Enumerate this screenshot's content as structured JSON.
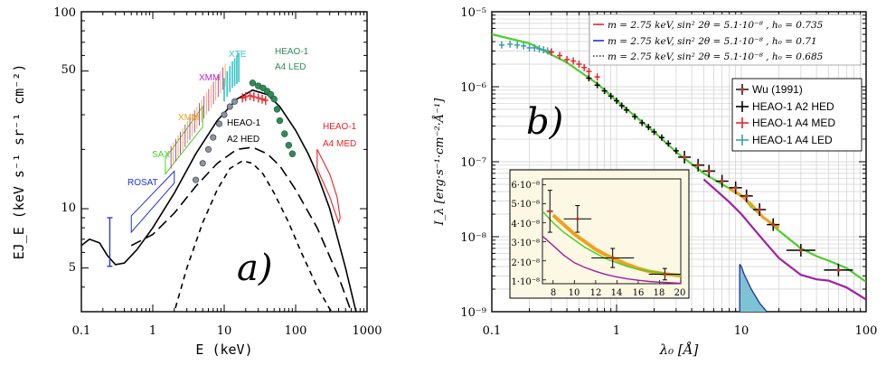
{
  "colors": {
    "red": "#e8242a",
    "blue": "#1f2fd6",
    "navy": "#1f2f9c",
    "green": "#2e8b57",
    "cyan": "#34c4c4",
    "purple": "#a020a0",
    "lime": "#4ccf2a",
    "orange": "#f0a020",
    "olive": "#8fb820",
    "teal": "#3b9ea8",
    "inset_bg": "#fdf8e3",
    "black": "#000000"
  },
  "chart_data": [
    {
      "type": "line",
      "panel_label": "a)",
      "xlabel": "E (keV)",
      "ylabel": "EJ_E  (keV s⁻¹ sr⁻¹ cm⁻²)",
      "xscale": "log",
      "yscale": "log",
      "xlim": [
        0.1,
        1000
      ],
      "ylim": [
        3,
        100
      ],
      "x_ticks": [
        0.1,
        1,
        10,
        100,
        1000
      ],
      "x_tick_labels": [
        "0.1",
        "1",
        "10",
        "100",
        "1000"
      ],
      "y_ticks": [
        5,
        10,
        50,
        100
      ],
      "y_tick_labels": [
        "5",
        "10",
        "50",
        "100"
      ],
      "annotations": {
        "rosat": "ROSAT",
        "sax": "SAX",
        "xmm_lower": "XMM",
        "xmm_upper": "XMM",
        "xte": "XTE",
        "heao1_a4led_line1": "HEAO-1",
        "heao1_a4led_line2": "A4 LED",
        "heao1_a2hed_line1": "HEAO-1",
        "heao1_a2hed_line2": "A2 HED",
        "heao1_a4med_line1": "HEAO-1",
        "heao1_a4med_line2": "A4 MED"
      },
      "series": [
        {
          "name": "total model",
          "style": "solid",
          "x": [
            0.1,
            0.13,
            0.18,
            0.23,
            0.3,
            0.4,
            0.6,
            1,
            2,
            4,
            8,
            15,
            25,
            40,
            60,
            100,
            150,
            200,
            300,
            500,
            700,
            800
          ],
          "y": [
            6.5,
            7.0,
            6.7,
            5.8,
            5.2,
            5.3,
            6.2,
            8.0,
            12.0,
            19.0,
            28.0,
            36.0,
            40.0,
            38.0,
            33.0,
            25.0,
            19.0,
            15.0,
            10.0,
            5.0,
            3.0,
            2.5
          ]
        },
        {
          "name": "long-dashed component",
          "style": "longdash",
          "x": [
            0.5,
            1,
            2,
            4,
            8,
            15,
            25,
            40,
            60,
            100,
            200,
            400,
            600,
            700
          ],
          "y": [
            6.5,
            7.4,
            9.5,
            13.0,
            17.0,
            20.0,
            20.5,
            19.0,
            16.5,
            12.5,
            8.0,
            4.5,
            3.0,
            2.6
          ]
        },
        {
          "name": "short-dashed component",
          "style": "dash",
          "x": [
            1.9,
            3,
            5,
            8,
            12,
            18,
            25,
            35,
            50,
            80,
            120,
            200,
            300,
            400
          ],
          "y": [
            2.8,
            5.0,
            8.5,
            12.5,
            16.0,
            17.5,
            17.0,
            15.0,
            12.0,
            8.5,
            6.0,
            4.0,
            3.1,
            2.7
          ]
        }
      ],
      "data_markers": {
        "rosat_error_bar": {
          "x": 0.25,
          "y_low": 5.1,
          "y_high": 9.0
        },
        "asca_points": {
          "x": [
            4.0,
            5.0,
            6.0,
            7.0,
            8.5,
            10,
            12,
            14
          ],
          "y": [
            14.0,
            17.0,
            20.0,
            23.0,
            27.0,
            30.0,
            33.0,
            35.0
          ]
        },
        "heao_a4led_points": {
          "x": [
            25,
            30,
            35,
            40,
            45,
            50,
            55,
            60,
            70,
            80,
            90
          ],
          "y": [
            43.5,
            42.0,
            41.0,
            39.5,
            38.0,
            36.0,
            32.0,
            28.0,
            24.0,
            21.0,
            19.0
          ]
        },
        "heao_a4med_points": {
          "x": [
            18,
            20,
            23,
            26,
            30,
            34,
            38
          ],
          "y": [
            36.5,
            37.0,
            37.5,
            37.0,
            36.5,
            36.0,
            35.5
          ]
        },
        "heao_a4med_box": {
          "x": [
            200,
            300,
            380,
            420,
            400,
            300,
            200
          ],
          "y": [
            20.0,
            15.0,
            11.5,
            9.0,
            8.5,
            11.5,
            16.0
          ]
        },
        "xte_bars": {
          "x": [
            10,
            11,
            12,
            13,
            14,
            15,
            16
          ],
          "y_low": [
            35.0,
            37.0,
            39.0,
            41.0,
            42.0,
            43.0,
            44.0
          ],
          "y_high": [
            46.0,
            50.0,
            53.0,
            56.0,
            58.0,
            60.0,
            62.0
          ]
        }
      }
    },
    {
      "type": "line",
      "panel_label": "b)",
      "xlabel": "λ₀   [Å]",
      "ylabel": "I_λ  [erg·s⁻¹·cm⁻²·Å⁻¹]",
      "xscale": "log",
      "yscale": "log",
      "xlim": [
        0.1,
        100
      ],
      "ylim": [
        1e-09,
        1e-05
      ],
      "x_ticks": [
        0.1,
        1,
        10,
        100
      ],
      "x_tick_labels": [
        "0.1",
        "1",
        "10",
        "100"
      ],
      "y_tick_labels": [
        "10⁻⁵",
        "10⁻⁶",
        "10⁻⁷",
        "10⁻⁸",
        "10⁻⁹"
      ],
      "model_legend": [
        {
          "color": "red",
          "label": "m = 2.75 keV, sin² 2θ = 5.1·10⁻⁸ , h₀ = 0.735"
        },
        {
          "color": "blue",
          "label": "m = 2.75 keV, sin² 2θ = 5.1·10⁻⁸ , h₀ = 0.71"
        },
        {
          "color": "black",
          "label": "m = 2.75 keV, sin² 2θ = 5.1·10⁻⁸ , h₀ = 0.685"
        }
      ],
      "data_legend": [
        {
          "color": "black",
          "label": "Wu (1991)"
        },
        {
          "color": "black",
          "label": "HEAO-1 A2 HED"
        },
        {
          "color": "red",
          "label": "HEAO-1 A4 MED"
        },
        {
          "color": "teal",
          "label": "HEAO-1 A4 LED"
        }
      ],
      "series": [
        {
          "name": "green model",
          "x": [
            0.1,
            0.2,
            0.4,
            0.7,
            1,
            2,
            3,
            5,
            8,
            10,
            12,
            20,
            30,
            40,
            50,
            70,
            100
          ],
          "y": [
            5e-06,
            3.8e-06,
            2.1e-06,
            1.1e-06,
            6.5e-07,
            2.5e-07,
            1.35e-07,
            7e-08,
            4.4e-08,
            3.6e-08,
            2.5e-08,
            1.2e-08,
            7e-09,
            5.5e-09,
            4.8e-09,
            3.8e-09,
            2.5e-09
          ]
        },
        {
          "name": "purple model",
          "x": [
            5,
            8,
            10,
            15,
            20,
            30,
            40,
            50,
            70,
            100
          ],
          "y": [
            5.8e-08,
            2.9e-08,
            2e-08,
            9e-09,
            5.2e-09,
            3.1e-09,
            2.7e-09,
            2.6e-09,
            2.1e-09,
            1.45e-09
          ]
        },
        {
          "name": "orange model",
          "x": [
            8,
            10,
            12,
            15,
            20
          ],
          "y": [
            4.4e-08,
            3.5e-08,
            2.7e-08,
            1.8e-08,
            1.3e-08
          ]
        }
      ],
      "shaded_line": {
        "x": [
          9.7,
          10,
          10.5,
          12,
          14,
          16
        ],
        "y": [
          4.3e-09,
          4e-09,
          3.2e-09,
          2e-09,
          1.3e-09,
          1e-09
        ]
      },
      "data_points": {
        "heao_a4led": {
          "x": [
            0.12,
            0.14,
            0.16,
            0.18,
            0.2,
            0.22,
            0.24,
            0.26,
            0.28,
            0.3
          ],
          "y": [
            3.6e-06,
            3.7e-06,
            3.6e-06,
            3.5e-06,
            3.3e-06,
            3.3e-06,
            3.2e-06,
            3.1e-06,
            3e-06,
            2.9e-06
          ]
        },
        "heao_a4med": {
          "x": [
            0.3,
            0.35,
            0.4,
            0.45,
            0.5,
            0.55,
            0.6,
            0.7
          ],
          "y": [
            2.9e-06,
            2.6e-06,
            2.3e-06,
            2.2e-06,
            2e-06,
            1.8e-06,
            1.6e-06,
            1.35e-06
          ]
        },
        "heao_a2hed": {
          "x": [
            0.6,
            0.7,
            0.8,
            0.9,
            1,
            1.1,
            1.2,
            1.4,
            1.6,
            1.8,
            2,
            2.3,
            2.6,
            3
          ],
          "y": [
            1.3e-06,
            1.05e-06,
            8.8e-07,
            7.5e-07,
            6.5e-07,
            5.6e-07,
            4.9e-07,
            4e-07,
            3.3e-07,
            2.9e-07,
            2.5e-07,
            2.1e-07,
            1.75e-07,
            1.4e-07
          ]
        },
        "wu_1991": {
          "x": [
            3.5,
            4.5,
            5.5,
            7,
            9,
            11,
            14,
            18,
            30,
            60
          ],
          "y": [
            1.15e-07,
            9e-08,
            7.5e-08,
            5.5e-08,
            4.5e-08,
            3.5e-08,
            2.3e-08,
            1.45e-08,
            6.6e-09,
            3.6e-09
          ]
        }
      },
      "inset": {
        "xlim": [
          7,
          20
        ],
        "ylim": [
          8e-09,
          6.3e-08
        ],
        "x_tick_labels": [
          "8",
          "10",
          "12",
          "14",
          "16",
          "18",
          "20"
        ],
        "y_tick_labels": [
          "6·10⁻⁸",
          "5·10⁻⁸",
          "4·10⁻⁸",
          "3·10⁻⁸",
          "2·10⁻⁸",
          "1·10⁻⁸"
        ],
        "green_x": [
          7,
          8,
          9,
          10,
          11,
          12,
          13,
          14,
          15,
          16,
          17,
          18,
          19,
          20
        ],
        "green_y": [
          4.6e-08,
          4e-08,
          3.5e-08,
          3.1e-08,
          2.7e-08,
          2.4e-08,
          2.1e-08,
          1.9e-08,
          1.7e-08,
          1.55e-08,
          1.45e-08,
          1.38e-08,
          1.3e-08,
          1.25e-08
        ],
        "orange_x": [
          8,
          9,
          10,
          11,
          12,
          13,
          14,
          15,
          16,
          17,
          18,
          19,
          20
        ],
        "orange_y": [
          4.4e-08,
          3.9e-08,
          3.4e-08,
          3e-08,
          2.6e-08,
          2.3e-08,
          2.05e-08,
          1.8e-08,
          1.6e-08,
          1.45e-08,
          1.35e-08,
          1.28e-08,
          1.22e-08
        ],
        "purple_x": [
          7,
          8,
          9,
          10,
          11,
          12,
          13,
          14,
          15,
          16,
          17,
          18,
          19,
          20
        ],
        "purple_y": [
          3.3e-08,
          2.8e-08,
          2.3e-08,
          1.9e-08,
          1.65e-08,
          1.45e-08,
          1.28e-08,
          1.15e-08,
          1.05e-08,
          9.8e-09,
          9.2e-09,
          8.8e-09,
          8.5e-09,
          8.2e-09
        ],
        "points": {
          "x": [
            7.7,
            10.3,
            13.6,
            18.5
          ],
          "y": [
            4.6e-08,
            4.2e-08,
            2.15e-08,
            1.3e-08
          ],
          "yerr": [
            1.1e-08,
            7e-09,
            5e-09,
            3e-09
          ],
          "xerr": [
            0.3,
            1.3,
            2.0,
            1.5
          ]
        }
      }
    }
  ]
}
